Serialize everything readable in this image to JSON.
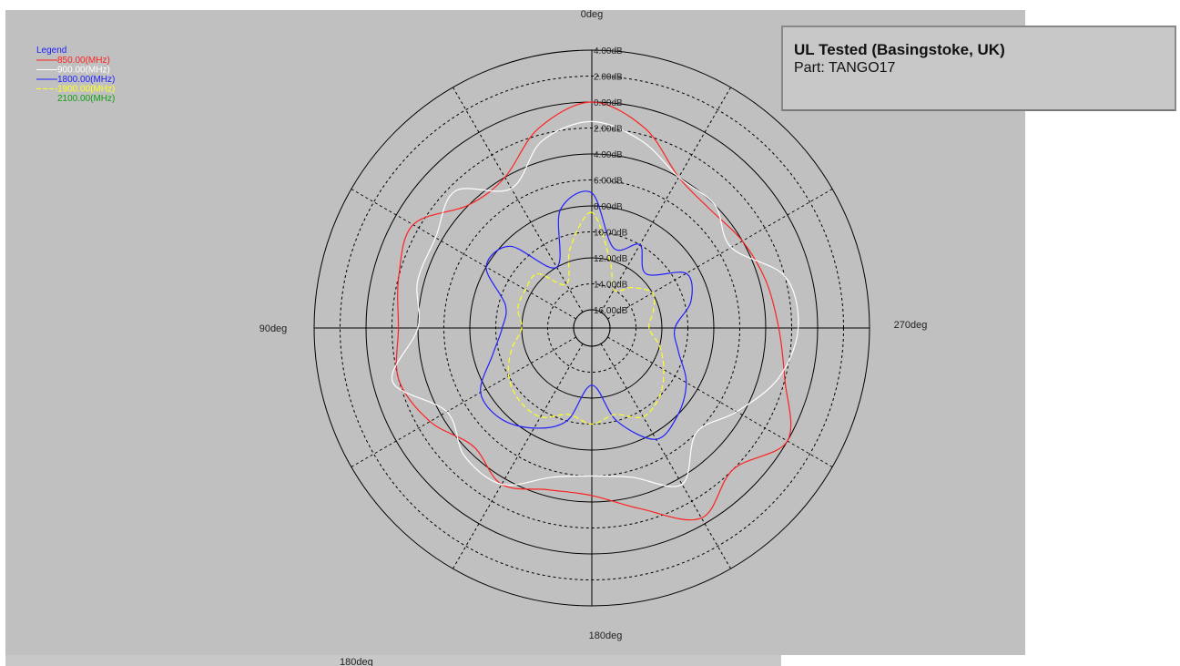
{
  "info": {
    "title": "UL Tested (Basingstoke, UK)",
    "part": "Part: TANGO17"
  },
  "footer_label": "180deg",
  "chart_data": {
    "type": "polar-line",
    "angle_labels": {
      "top": "0deg",
      "left": "90deg",
      "bottom": "180deg",
      "right": "270deg"
    },
    "radial_ticks": [
      "4.00dB",
      "2.00dB",
      "0.00dB",
      "-2.00dB",
      "-4.00dB",
      "-6.00dB",
      "-8.00dB",
      "-10.00dB",
      "-12.00dB",
      "-14.00dB",
      "-16.00dB"
    ],
    "radial_tick_text": [
      "4.00dB",
      "2.00dB",
      "0.00dB",
      "2.00dB",
      "4.00dB",
      "6.00dB",
      "8.00dB",
      "10.00dB",
      "12.00dB",
      "14.00dB",
      "16.00dB"
    ],
    "rlim": [
      -16,
      4
    ],
    "legend_title": "Legend",
    "legend_position": "top-left",
    "grid": true,
    "angles_deg": [
      0,
      15,
      30,
      45,
      60,
      75,
      90,
      105,
      120,
      135,
      150,
      165,
      180,
      195,
      210,
      225,
      240,
      255,
      270,
      285,
      300,
      315,
      330,
      345
    ],
    "series": [
      {
        "name": "850.00(MHz)",
        "color": "#ff2020",
        "dashed": false,
        "values": [
          0.0,
          -1.5,
          -4.0,
          -4.0,
          -1.5,
          -2.0,
          -2.5,
          -2.0,
          -3.0,
          -4.5,
          -3.5,
          -4.5,
          -4.5,
          -3.0,
          -0.5,
          -2.0,
          0.0,
          -2.0,
          -3.0,
          -3.5,
          -4.0,
          -4.5,
          -4.0,
          -1.5
        ]
      },
      {
        "name": "900.00(MHz)",
        "color": "#ffffff",
        "dashed": false,
        "values": [
          -1.5,
          -2.5,
          -5.0,
          -2.5,
          -3.5,
          -3.5,
          -4.0,
          -1.5,
          -4.5,
          -3.5,
          -3.5,
          -5.5,
          -6.0,
          -5.5,
          -3.5,
          -6.0,
          -4.5,
          -2.5,
          -1.5,
          -2.0,
          -5.0,
          -4.0,
          -4.0,
          -2.5
        ]
      },
      {
        "name": "1800.00(MHz)",
        "color": "#2020ff",
        "dashed": false,
        "values": [
          -7.0,
          -8.0,
          -12.0,
          -8.5,
          -8.0,
          -10.5,
          -10.5,
          -9.5,
          -7.5,
          -7.5,
          -8.5,
          -10.0,
          -13.0,
          -10.0,
          -7.5,
          -8.0,
          -9.0,
          -10.5,
          -11.0,
          -9.5,
          -9.0,
          -11.5,
          -10.0,
          -11.0
        ]
      },
      {
        "name": "1900.00(MHz)",
        "color": "#ffff20",
        "dashed": true,
        "values": [
          -8.5,
          -11.0,
          -13.5,
          -11.5,
          -11.5,
          -11.5,
          -12.0,
          -11.0,
          -10.0,
          -9.5,
          -9.5,
          -10.5,
          -10.0,
          -10.5,
          -9.5,
          -10.0,
          -11.0,
          -12.0,
          -13.0,
          -12.5,
          -12.0,
          -13.0,
          -14.0,
          -12.0
        ]
      },
      {
        "name": "2100.00(MHz)",
        "color": "#10a010",
        "dashed": false,
        "values": []
      }
    ]
  }
}
